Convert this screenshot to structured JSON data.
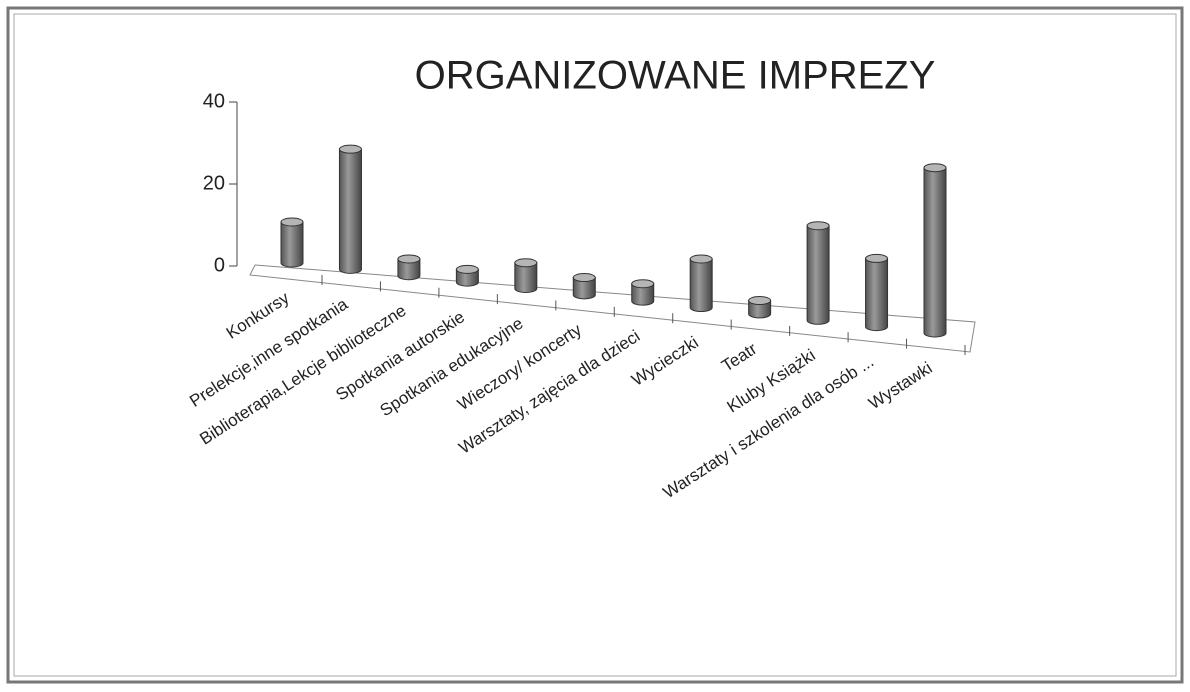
{
  "chart_data": {
    "type": "bar",
    "title": "ORGANIZOWANE IMPREZY",
    "categories": [
      "Konkursy",
      "Prelekcje,inne spotkania",
      "Biblioterapia,Lekcje biblioteczne",
      "Spotkania autorskie",
      "Spotkania edukacyjne",
      "Wieczory/ koncerty",
      "Warsztaty, zajęcia dla dzieci",
      "Wycieczki",
      "Teatr",
      "Kluby Książki",
      "Warsztaty i szkolenia dla osób ...",
      "Wystawki"
    ],
    "values": [
      10,
      29,
      4,
      3,
      6,
      4,
      4,
      11,
      3,
      21,
      15,
      36
    ],
    "color": "#7f7f7f",
    "ylim": [
      0,
      40
    ],
    "yticks": [
      0,
      20,
      40
    ]
  }
}
